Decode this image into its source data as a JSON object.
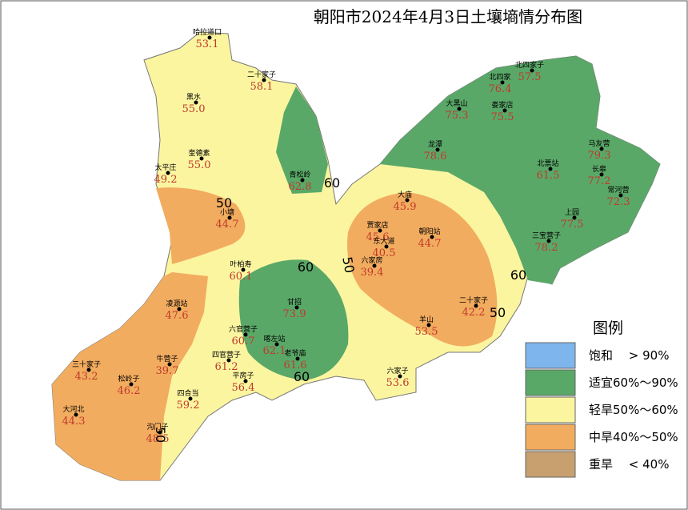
{
  "title": "朝阳市2024年4月3日土壤墒情分布图",
  "stations": [
    {
      "name": "哈拉道口",
      "value": "53.1"
    },
    {
      "name": "二十家子",
      "value": "58.1"
    },
    {
      "name": "黑水",
      "value": "55.0"
    },
    {
      "name": "奎德素",
      "value": "55.0"
    },
    {
      "name": "太平庄",
      "value": "49.2"
    },
    {
      "name": "小塘",
      "value": "44.7"
    },
    {
      "name": "青松岭",
      "value": "62.8"
    },
    {
      "name": "叶柏寿",
      "value": "60.1"
    },
    {
      "name": "凌源站",
      "value": "47.6"
    },
    {
      "name": "六官营子",
      "value": "60.7"
    },
    {
      "name": "喀左站",
      "value": "62.1"
    },
    {
      "name": "甘招",
      "value": "73.9"
    },
    {
      "name": "四官营子",
      "value": "61.2"
    },
    {
      "name": "老爷庙",
      "value": "61.6"
    },
    {
      "name": "三十家子",
      "value": "43.2"
    },
    {
      "name": "牛营子",
      "value": "39.7"
    },
    {
      "name": "松岭子",
      "value": "46.2"
    },
    {
      "name": "平房子",
      "value": "56.4"
    },
    {
      "name": "四合当",
      "value": "59.2"
    },
    {
      "name": "大河北",
      "value": "44.3"
    },
    {
      "name": "沟门子",
      "value": "48.5"
    },
    {
      "name": "北四家子",
      "value": "57.5"
    },
    {
      "name": "北四家",
      "value": "76.4"
    },
    {
      "name": "大黑山",
      "value": "75.3"
    },
    {
      "name": "娄家店",
      "value": "75.5"
    },
    {
      "name": "龙潭",
      "value": "78.6"
    },
    {
      "name": "马友营",
      "value": "79.3"
    },
    {
      "name": "北票站",
      "value": "61.5"
    },
    {
      "name": "长皋",
      "value": "77.2"
    },
    {
      "name": "常河营",
      "value": "72.3"
    },
    {
      "name": "上园",
      "value": "77.5"
    },
    {
      "name": "三宝营子",
      "value": "78.2"
    },
    {
      "name": "大庙",
      "value": "45.9"
    },
    {
      "name": "贾家店",
      "value": "45.6"
    },
    {
      "name": "东大道",
      "value": "40.5"
    },
    {
      "name": "朝阳站",
      "value": "44.7"
    },
    {
      "name": "六家房",
      "value": "39.4"
    },
    {
      "name": "二十家子",
      "value": "42.2"
    },
    {
      "name": "羊山",
      "value": "53.5"
    },
    {
      "name": "六家子",
      "value": "53.6"
    }
  ],
  "contour_labels": [
    "50",
    "60",
    "60",
    "50",
    "60",
    "50",
    "60",
    "50"
  ],
  "legend": {
    "title": "图例",
    "items": [
      {
        "label": "饱和　 > 90%",
        "color": "#7eb5ec"
      },
      {
        "label": "适宜60%～90%",
        "color": "#5aa868"
      },
      {
        "label": "轻旱50%～60%",
        "color": "#fbf5a0"
      },
      {
        "label": "中旱40%～50%",
        "color": "#f2ac5f"
      },
      {
        "label": "重旱　 < 40%",
        "color": "#c8a070"
      }
    ]
  }
}
